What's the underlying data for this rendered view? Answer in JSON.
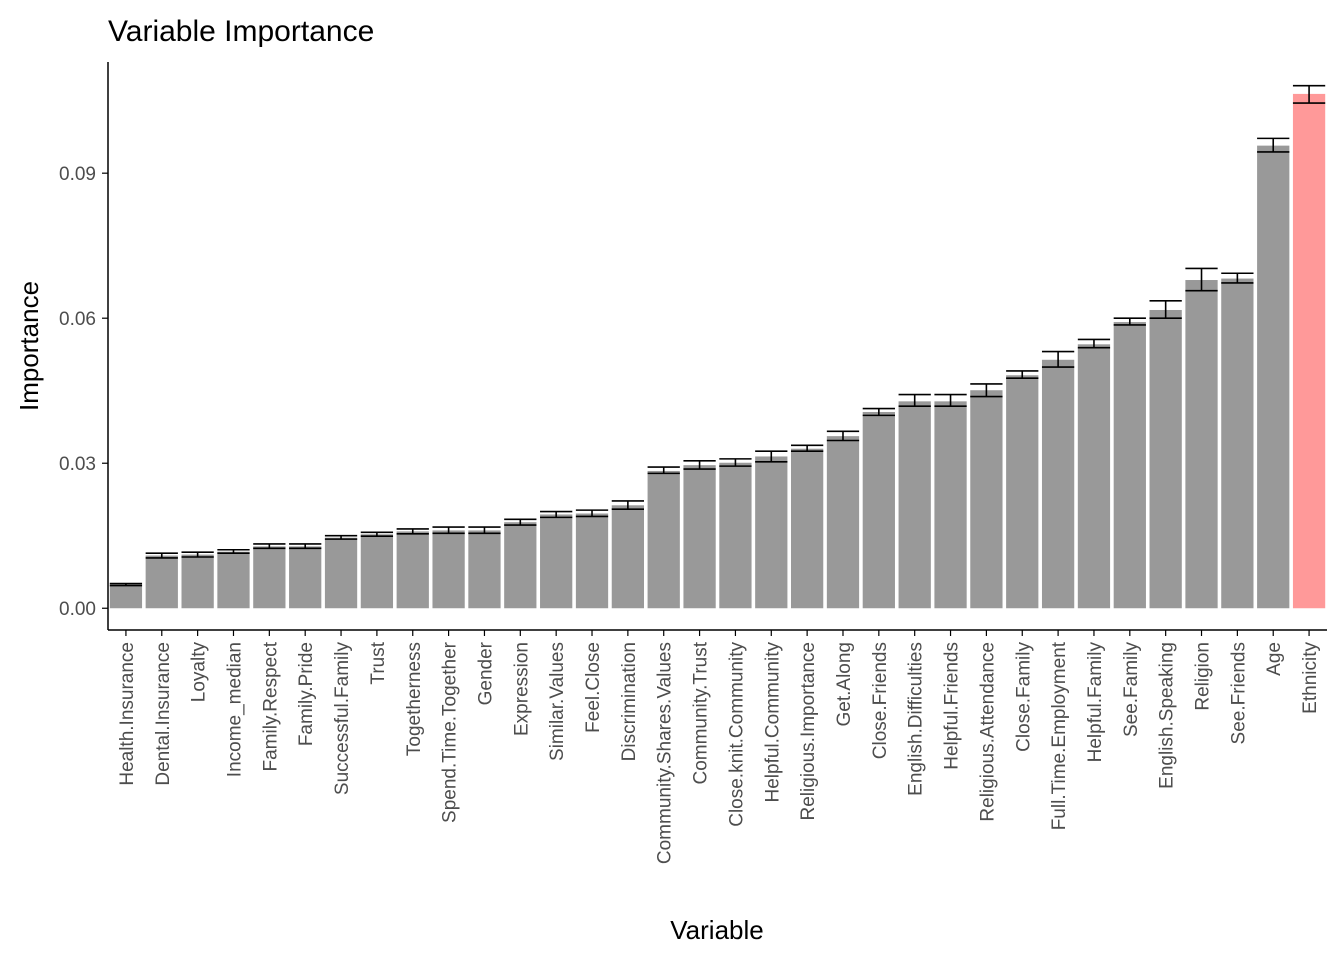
{
  "chart_data": {
    "type": "bar",
    "title": "Variable Importance",
    "xlabel": "Variable",
    "ylabel": "Importance",
    "ylim": [
      -0.0045,
      0.113
    ],
    "yticks": [
      "0.00",
      "0.03",
      "0.06",
      "0.09"
    ],
    "ytick_values": [
      0.0,
      0.03,
      0.06,
      0.09
    ],
    "grid": false,
    "legend": "none",
    "colors": {
      "default": "#999999",
      "highlight": "#ff9999",
      "errorbar": "#000000",
      "axis": "#000000"
    },
    "highlight_category": "Ethnicity",
    "categories": [
      "Health.Insurance",
      "Dental.Insurance",
      "Loyalty",
      "Income_median",
      "Family.Respect",
      "Family.Pride",
      "Successful.Family",
      "Trust",
      "Togetherness",
      "Spend.Time.Together",
      "Gender",
      "Expression",
      "Similar.Values",
      "Feel.Close",
      "Discrimination",
      "Community.Shares.Values",
      "Community.Trust",
      "Close.knit.Community",
      "Helpful.Community",
      "Religious.Importance",
      "Get.Along",
      "Close.Friends",
      "English.Difficulties",
      "Helpful.Friends",
      "Religious.Attendance",
      "Close.Family",
      "Full.Time.Employment",
      "Helpful.Family",
      "See.Family",
      "English.Speaking",
      "Religion",
      "See.Friends",
      "Age",
      "Ethnicity"
    ],
    "values": [
      0.0049,
      0.0109,
      0.0111,
      0.0117,
      0.0128,
      0.0128,
      0.0146,
      0.0153,
      0.0159,
      0.0161,
      0.0161,
      0.0178,
      0.0194,
      0.0196,
      0.0213,
      0.0284,
      0.0296,
      0.0301,
      0.0314,
      0.033,
      0.0356,
      0.0406,
      0.0428,
      0.0428,
      0.0451,
      0.0482,
      0.0514,
      0.0546,
      0.0592,
      0.0617,
      0.0679,
      0.0682,
      0.0957,
      0.1064
    ],
    "error_low": [
      0.0047,
      0.0104,
      0.0106,
      0.0114,
      0.0124,
      0.0124,
      0.0143,
      0.0149,
      0.0154,
      0.0155,
      0.0155,
      0.0172,
      0.0188,
      0.019,
      0.0205,
      0.0279,
      0.0288,
      0.0294,
      0.0303,
      0.0325,
      0.0347,
      0.0399,
      0.0418,
      0.0418,
      0.0438,
      0.0476,
      0.0499,
      0.0539,
      0.0586,
      0.06,
      0.0657,
      0.0673,
      0.0944,
      0.1045
    ],
    "error_high": [
      0.0051,
      0.0114,
      0.0116,
      0.0121,
      0.0133,
      0.0133,
      0.015,
      0.0157,
      0.0164,
      0.0168,
      0.0168,
      0.0184,
      0.02,
      0.0203,
      0.0222,
      0.0292,
      0.0305,
      0.0309,
      0.0325,
      0.0337,
      0.0366,
      0.0413,
      0.0442,
      0.0442,
      0.0464,
      0.0491,
      0.0531,
      0.0556,
      0.06,
      0.0636,
      0.0703,
      0.0693,
      0.0972,
      0.1081
    ]
  }
}
